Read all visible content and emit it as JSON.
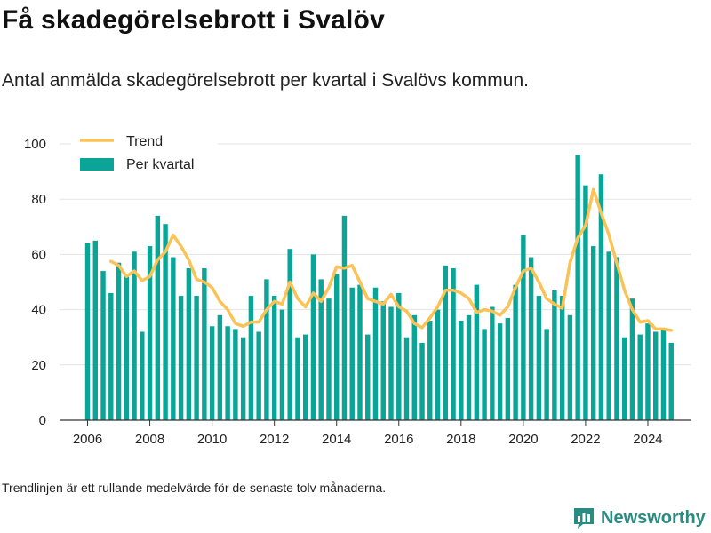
{
  "title": "Få skadegörelsebrott i Svalöv",
  "subtitle": "Antal anmälda skadegörelsebrott per kvartal i Svalövs kommun.",
  "footnote": "Trendlinjen är ett rullande medelvärde för de senaste tolv månaderna.",
  "brand": {
    "name": "Newsworthy",
    "logo_icon": "bar-chart-icon"
  },
  "colors": {
    "bars": "#0aa596",
    "trend": "#fbc256",
    "brand": "#2a8c80"
  },
  "chart_data": {
    "type": "bar",
    "title": "",
    "xlabel": "",
    "ylabel": "",
    "ylim": [
      0,
      100
    ],
    "yticks": [
      0,
      20,
      40,
      60,
      80,
      100
    ],
    "xticks": [
      2006,
      2008,
      2010,
      2012,
      2014,
      2016,
      2018,
      2020,
      2022,
      2024
    ],
    "xlim": [
      2005.1,
      2025.4
    ],
    "grid": true,
    "legend_position": "top-left",
    "series": [
      {
        "name": "Per kvartal",
        "kind": "bar",
        "x": [
          2006.0,
          2006.25,
          2006.5,
          2006.75,
          2007.0,
          2007.25,
          2007.5,
          2007.75,
          2008.0,
          2008.25,
          2008.5,
          2008.75,
          2009.0,
          2009.25,
          2009.5,
          2009.75,
          2010.0,
          2010.25,
          2010.5,
          2010.75,
          2011.0,
          2011.25,
          2011.5,
          2011.75,
          2012.0,
          2012.25,
          2012.5,
          2012.75,
          2013.0,
          2013.25,
          2013.5,
          2013.75,
          2014.0,
          2014.25,
          2014.5,
          2014.75,
          2015.0,
          2015.25,
          2015.5,
          2015.75,
          2016.0,
          2016.25,
          2016.5,
          2016.75,
          2017.0,
          2017.25,
          2017.5,
          2017.75,
          2018.0,
          2018.25,
          2018.5,
          2018.75,
          2019.0,
          2019.25,
          2019.5,
          2019.75,
          2020.0,
          2020.25,
          2020.5,
          2020.75,
          2021.0,
          2021.25,
          2021.5,
          2021.75,
          2022.0,
          2022.25,
          2022.5,
          2022.75,
          2023.0,
          2023.25,
          2023.5,
          2023.75,
          2024.0,
          2024.25,
          2024.5,
          2024.75
        ],
        "values": [
          64,
          65,
          54,
          46,
          57,
          53,
          61,
          32,
          63,
          74,
          71,
          59,
          45,
          55,
          45,
          55,
          34,
          38,
          34,
          33,
          30,
          45,
          32,
          51,
          45,
          40,
          62,
          30,
          31,
          60,
          51,
          44,
          53,
          74,
          48,
          49,
          31,
          48,
          43,
          41,
          46,
          30,
          38,
          28,
          36,
          40,
          56,
          55,
          36,
          38,
          49,
          33,
          41,
          35,
          37,
          49,
          67,
          59,
          45,
          33,
          47,
          45,
          38,
          96,
          85,
          63,
          89,
          61,
          59,
          30,
          44,
          31,
          35,
          32,
          33,
          28
        ]
      },
      {
        "name": "Trend",
        "kind": "line",
        "x": [
          2006.75,
          2007.0,
          2007.25,
          2007.5,
          2007.75,
          2008.0,
          2008.25,
          2008.5,
          2008.75,
          2009.0,
          2009.25,
          2009.5,
          2009.75,
          2010.0,
          2010.25,
          2010.5,
          2010.75,
          2011.0,
          2011.25,
          2011.5,
          2011.75,
          2012.0,
          2012.25,
          2012.5,
          2012.75,
          2013.0,
          2013.25,
          2013.5,
          2013.75,
          2014.0,
          2014.25,
          2014.5,
          2014.75,
          2015.0,
          2015.25,
          2015.5,
          2015.75,
          2016.0,
          2016.25,
          2016.5,
          2016.75,
          2017.0,
          2017.25,
          2017.5,
          2017.75,
          2018.0,
          2018.25,
          2018.5,
          2018.75,
          2019.0,
          2019.25,
          2019.5,
          2019.75,
          2020.0,
          2020.25,
          2020.5,
          2020.75,
          2021.0,
          2021.25,
          2021.5,
          2021.75,
          2022.0,
          2022.25,
          2022.5,
          2022.75,
          2023.0,
          2023.25,
          2023.5,
          2023.75,
          2024.0,
          2024.25,
          2024.5,
          2024.75
        ],
        "values": [
          57.5,
          56,
          52,
          54,
          50.5,
          52,
          58,
          61,
          67,
          63,
          58,
          51,
          50,
          48,
          43,
          40,
          35,
          34,
          35.5,
          35.5,
          40,
          43,
          42,
          50,
          44,
          41,
          46,
          43,
          48,
          55.5,
          55,
          56,
          50,
          44,
          43,
          42,
          45.5,
          41,
          39.5,
          35,
          33.5,
          37,
          41,
          47,
          47,
          46,
          44,
          39,
          40,
          39.5,
          38,
          41,
          48,
          54,
          55,
          50,
          44,
          42,
          40.5,
          57,
          66,
          70.5,
          83.5,
          75,
          67,
          57,
          47,
          40,
          35.5,
          36,
          33,
          33,
          32.5
        ]
      }
    ]
  }
}
